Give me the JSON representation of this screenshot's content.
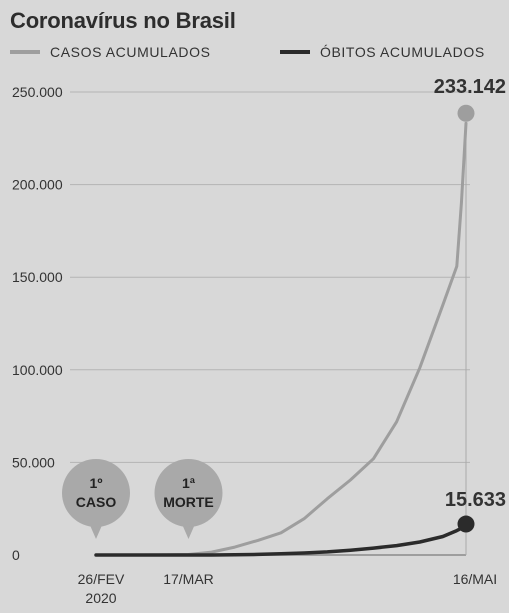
{
  "title": "Coronavírus no Brasil",
  "legend": {
    "cases_label": "CASOS ACUMULADOS",
    "deaths_label": "ÓBITOS ACUMULADOS"
  },
  "colors": {
    "background": "#d8d8d8",
    "cases": "#9e9e9e",
    "deaths": "#2b2b2b",
    "grid": "#b4b4b4",
    "bubble": "#a9a9a9"
  },
  "chart_data": {
    "type": "line",
    "title": "Coronavírus no Brasil",
    "ylim": [
      0,
      250000
    ],
    "y_ticks": [
      "0",
      "50.000",
      "100.000",
      "150.000",
      "200.000",
      "250.000"
    ],
    "y_tick_values": [
      0,
      50000,
      100000,
      150000,
      200000,
      250000
    ],
    "x_tick_labels": [
      {
        "day": 0,
        "lines": [
          "26/FEV",
          "2020"
        ]
      },
      {
        "day": 20,
        "lines": [
          "17/MAR"
        ]
      },
      {
        "day": 80,
        "lines": [
          "16/MAI"
        ]
      }
    ],
    "x_range_days": [
      0,
      80
    ],
    "grid": true,
    "legend_position": "top",
    "series": [
      {
        "name": "CASOS ACUMULADOS",
        "points": [
          [
            0,
            1
          ],
          [
            10,
            5
          ],
          [
            15,
            80
          ],
          [
            20,
            290
          ],
          [
            25,
            1550
          ],
          [
            30,
            4250
          ],
          [
            35,
            7900
          ],
          [
            40,
            12000
          ],
          [
            45,
            19600
          ],
          [
            50,
            30400
          ],
          [
            55,
            40500
          ],
          [
            60,
            52000
          ],
          [
            65,
            71900
          ],
          [
            70,
            101100
          ],
          [
            75,
            135100
          ],
          [
            78,
            155900
          ],
          [
            79,
            190000
          ],
          [
            80,
            233142
          ]
        ],
        "final_label": "233.142"
      },
      {
        "name": "ÓBITOS ACUMULADOS",
        "points": [
          [
            0,
            0
          ],
          [
            20,
            1
          ],
          [
            25,
            25
          ],
          [
            30,
            150
          ],
          [
            35,
            300
          ],
          [
            40,
            700
          ],
          [
            45,
            1100
          ],
          [
            50,
            1700
          ],
          [
            55,
            2600
          ],
          [
            60,
            3700
          ],
          [
            65,
            5100
          ],
          [
            70,
            7000
          ],
          [
            75,
            10000
          ],
          [
            78,
            13200
          ],
          [
            80,
            15633
          ]
        ],
        "final_label": "15.633"
      }
    ],
    "annotations": [
      {
        "day": 0,
        "lines": [
          "1º",
          "CASO"
        ]
      },
      {
        "day": 20,
        "lines": [
          "1ª",
          "MORTE"
        ]
      }
    ]
  }
}
